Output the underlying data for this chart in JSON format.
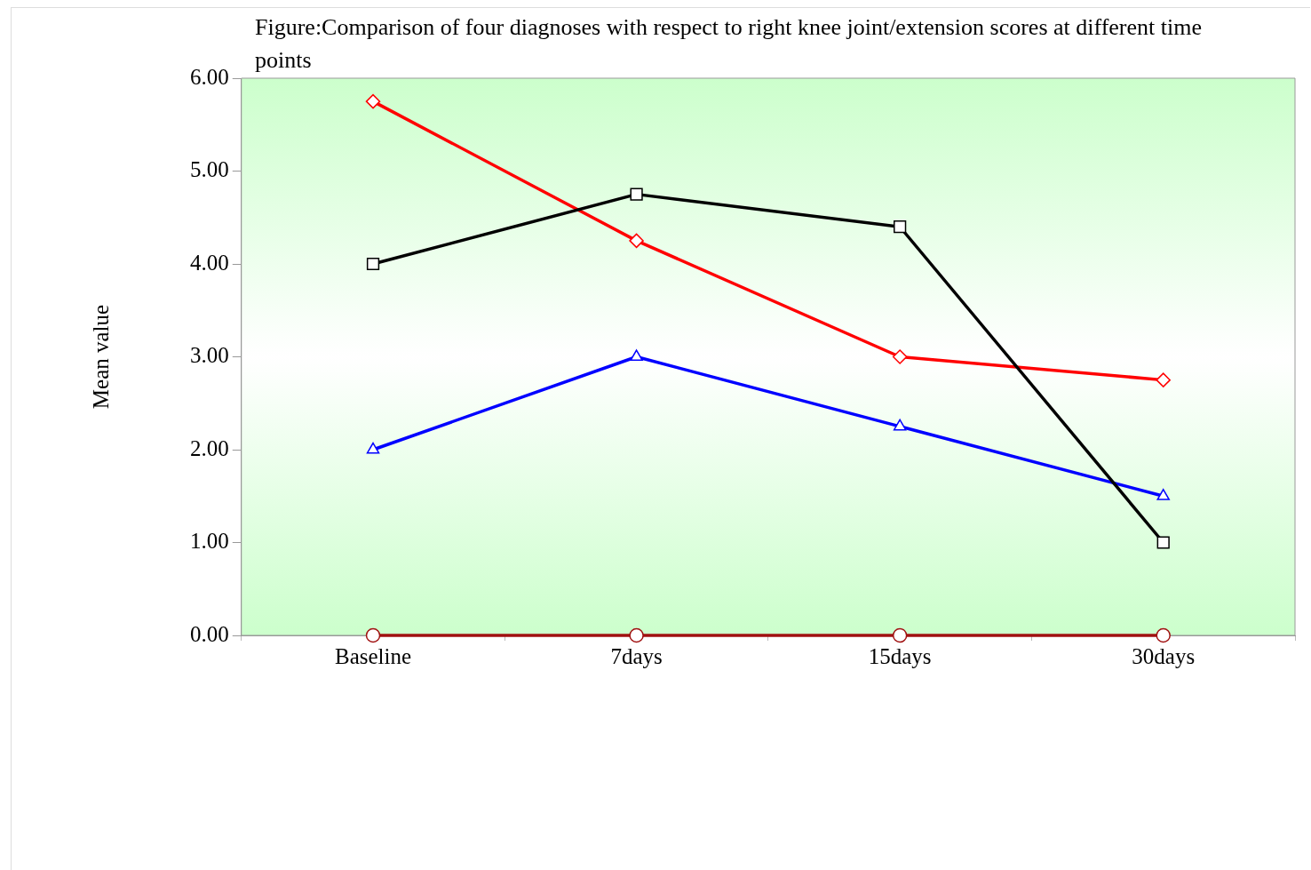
{
  "chart_data": {
    "type": "line",
    "title": "Figure:Comparison of four diagnoses with respect to right knee joint/extension scores at different time points",
    "ylabel": "Mean value",
    "categories": [
      "Baseline",
      "7days",
      "15days",
      "30days"
    ],
    "series": [
      {
        "color": "#000000",
        "marker": "square",
        "values": [
          4.0,
          4.75,
          4.4,
          1.0
        ]
      },
      {
        "color": "#ff0000",
        "marker": "diamond",
        "values": [
          5.75,
          4.25,
          3.0,
          2.75
        ]
      },
      {
        "color": "#0000ff",
        "marker": "triangle",
        "values": [
          2.0,
          3.0,
          2.25,
          1.5
        ]
      },
      {
        "color": "#a01010",
        "marker": "circle",
        "values": [
          0,
          0,
          0,
          0
        ]
      }
    ],
    "ylim": [
      0,
      6
    ],
    "yticks": [
      {
        "value": 0,
        "label": "0.00"
      },
      {
        "value": 1,
        "label": "1.00"
      },
      {
        "value": 2,
        "label": "2.00"
      },
      {
        "value": 3,
        "label": "3.00"
      },
      {
        "value": 4,
        "label": "4.00"
      },
      {
        "value": 5,
        "label": "5.00"
      },
      {
        "value": 6,
        "label": "6.00"
      }
    ],
    "grid": false,
    "legend": false,
    "line_style": "solid"
  }
}
